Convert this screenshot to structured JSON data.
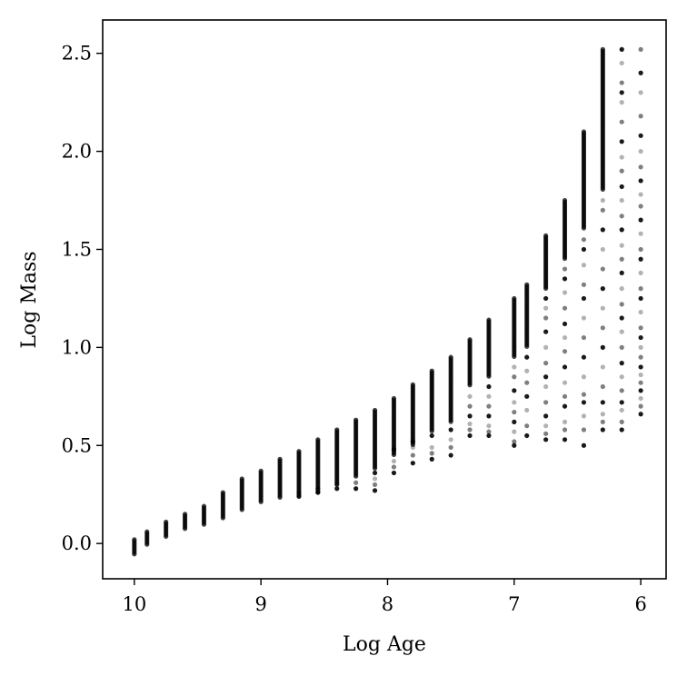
{
  "chart_data": {
    "type": "scatter",
    "title": "",
    "xlabel": "Log Age",
    "ylabel": "Log Mass",
    "xlim": [
      10.25,
      5.8
    ],
    "ylim": [
      -0.18,
      2.67
    ],
    "x_reversed": true,
    "grid": false,
    "legend": "none",
    "marker_color": "#000000",
    "x_ticks": [
      10,
      9,
      8,
      7,
      6
    ],
    "x_tick_labels": [
      "10",
      "9",
      "8",
      "7",
      "6"
    ],
    "y_ticks": [
      0.0,
      0.5,
      1.0,
      1.5,
      2.0,
      2.5
    ],
    "y_tick_labels": [
      "0.0",
      "0.5",
      "1.0",
      "1.5",
      "2.0",
      "2.5"
    ],
    "columns": [
      {
        "log_age": 10.0,
        "core": [
          -0.06,
          0.02
        ],
        "scatter": []
      },
      {
        "log_age": 9.9,
        "core": [
          -0.01,
          0.06
        ],
        "scatter": []
      },
      {
        "log_age": 9.75,
        "core": [
          0.03,
          0.11
        ],
        "scatter": []
      },
      {
        "log_age": 9.6,
        "core": [
          0.07,
          0.15
        ],
        "scatter": []
      },
      {
        "log_age": 9.45,
        "core": [
          0.09,
          0.19
        ],
        "scatter": []
      },
      {
        "log_age": 9.3,
        "core": [
          0.13,
          0.26
        ],
        "scatter": []
      },
      {
        "log_age": 9.15,
        "core": [
          0.17,
          0.33
        ],
        "scatter": []
      },
      {
        "log_age": 9.0,
        "core": [
          0.21,
          0.37
        ],
        "scatter": []
      },
      {
        "log_age": 8.85,
        "core": [
          0.23,
          0.43
        ],
        "scatter": []
      },
      {
        "log_age": 8.7,
        "core": [
          0.24,
          0.47
        ],
        "scatter": [
          0.24,
          0.26
        ]
      },
      {
        "log_age": 8.55,
        "core": [
          0.26,
          0.53
        ],
        "scatter": [
          0.26,
          0.28
        ]
      },
      {
        "log_age": 8.4,
        "core": [
          0.3,
          0.58
        ],
        "scatter": [
          0.28,
          0.3
        ]
      },
      {
        "log_age": 8.25,
        "core": [
          0.34,
          0.63
        ],
        "scatter": [
          0.28,
          0.31
        ]
      },
      {
        "log_age": 8.1,
        "core": [
          0.38,
          0.68
        ],
        "scatter": [
          0.27,
          0.3,
          0.33,
          0.36
        ]
      },
      {
        "log_age": 7.95,
        "core": [
          0.45,
          0.74
        ],
        "scatter": [
          0.36,
          0.39,
          0.42,
          0.48
        ]
      },
      {
        "log_age": 7.8,
        "core": [
          0.5,
          0.81
        ],
        "scatter": [
          0.41,
          0.45,
          0.49,
          0.52
        ]
      },
      {
        "log_age": 7.65,
        "core": [
          0.57,
          0.88
        ],
        "scatter": [
          0.43,
          0.46,
          0.49,
          0.55
        ]
      },
      {
        "log_age": 7.5,
        "core": [
          0.62,
          0.95
        ],
        "scatter": [
          0.45,
          0.49,
          0.53,
          0.58,
          0.62
        ]
      },
      {
        "log_age": 7.35,
        "core": [
          0.8,
          1.04
        ],
        "scatter": [
          0.55,
          0.58,
          0.61,
          0.65,
          0.7,
          0.75
        ]
      },
      {
        "log_age": 7.2,
        "core": [
          0.85,
          1.14
        ],
        "scatter": [
          0.55,
          0.57,
          0.6,
          0.65,
          0.7,
          0.75,
          0.8
        ]
      },
      {
        "log_age": 7.0,
        "core": [
          0.95,
          1.25
        ],
        "scatter": [
          0.5,
          0.52,
          0.57,
          0.62,
          0.67,
          0.72,
          0.78,
          0.85,
          0.9
        ]
      },
      {
        "log_age": 6.9,
        "core": [
          1.0,
          1.32
        ],
        "scatter": [
          0.55,
          0.6,
          0.68,
          0.75,
          0.82,
          0.88,
          0.95
        ]
      },
      {
        "log_age": 6.75,
        "core": [
          1.3,
          1.57
        ],
        "scatter": [
          0.53,
          0.56,
          0.6,
          0.65,
          0.72,
          0.8,
          0.85,
          0.92,
          1.0,
          1.08,
          1.15,
          1.2,
          1.25
        ]
      },
      {
        "log_age": 6.6,
        "core": [
          1.45,
          1.75
        ],
        "scatter": [
          0.53,
          0.58,
          0.62,
          0.7,
          0.75,
          0.82,
          0.9,
          0.98,
          1.05,
          1.12,
          1.2,
          1.28,
          1.35,
          1.4
        ]
      },
      {
        "log_age": 6.45,
        "core": [
          1.6,
          2.1
        ],
        "scatter": [
          0.5,
          0.58,
          0.65,
          0.72,
          0.76,
          0.85,
          0.95,
          1.05,
          1.15,
          1.25,
          1.32,
          1.42,
          1.5,
          1.55
        ]
      },
      {
        "log_age": 6.3,
        "core": [
          1.8,
          2.52
        ],
        "scatter": [
          0.58,
          0.62,
          0.66,
          0.72,
          0.8,
          0.9,
          1.0,
          1.1,
          1.2,
          1.3,
          1.4,
          1.5,
          1.6,
          1.7,
          1.75
        ]
      },
      {
        "log_age": 6.15,
        "core": [],
        "scatter": [
          0.58,
          0.62,
          0.68,
          0.72,
          0.78,
          0.85,
          0.92,
          1.0,
          1.08,
          1.15,
          1.22,
          1.3,
          1.38,
          1.45,
          1.52,
          1.6,
          1.67,
          1.75,
          1.82,
          1.9,
          1.97,
          2.05,
          2.15,
          2.25,
          2.3,
          2.35,
          2.45,
          2.52
        ]
      },
      {
        "log_age": 6.0,
        "core": [],
        "scatter": [
          0.66,
          0.7,
          0.74,
          0.78,
          0.82,
          0.86,
          0.9,
          0.95,
          1.0,
          1.05,
          1.1,
          1.18,
          1.25,
          1.3,
          1.38,
          1.45,
          1.5,
          1.58,
          1.65,
          1.72,
          1.78,
          1.85,
          1.92,
          2.0,
          2.08,
          2.18,
          2.3,
          2.4,
          2.52
        ]
      }
    ]
  }
}
